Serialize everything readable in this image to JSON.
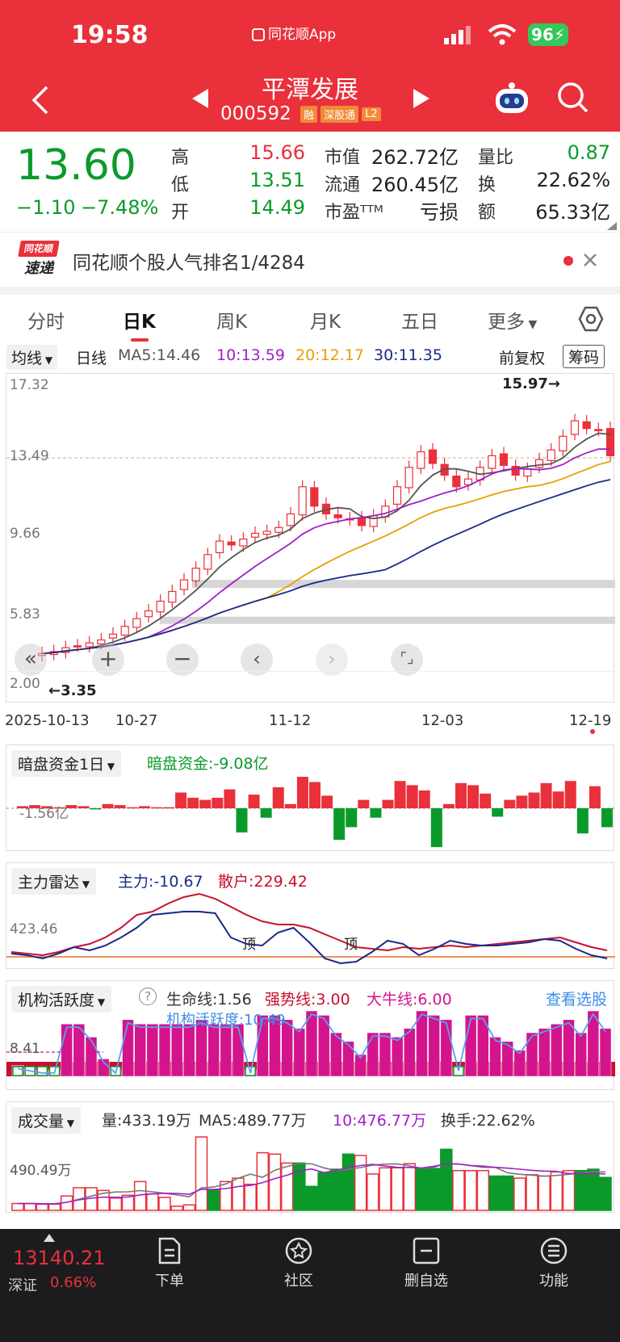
{
  "status": {
    "time": "19:58",
    "app_label": "同花顺App",
    "battery": "96"
  },
  "nav": {
    "stock_name": "平潭发展",
    "stock_code": "000592",
    "tags": [
      "融",
      "深股通",
      "L2"
    ]
  },
  "quote": {
    "price": "13.60",
    "change": "−1.10",
    "change_pct": "−7.48%",
    "high_label": "高",
    "high": "15.66",
    "low_label": "低",
    "low": "13.51",
    "open_label": "开",
    "open": "14.49",
    "mcap_label": "市值",
    "mcap": "262.72亿",
    "float_label": "流通",
    "float": "260.45亿",
    "pe_label": "市盈ᵀᵀᴹ",
    "pe": "亏损",
    "vr_label": "量比",
    "vr": "0.87",
    "turnover_label": "换",
    "turnover": "22.62%",
    "amount_label": "额",
    "amount": "65.33亿"
  },
  "banner": {
    "logo_top": "同花顺",
    "logo_bottom": "速递",
    "text": "同花顺个股人气排名1/4284"
  },
  "tabs": [
    "分时",
    "日K",
    "周K",
    "月K",
    "五日",
    "更多"
  ],
  "ma": {
    "selector": "均线",
    "period": "日线",
    "ma5": "MA5:14.46",
    "ma10": "10:13.59",
    "ma20": "20:12.17",
    "ma30": "30:11.35",
    "adjust": "前复权",
    "chips": "筹码"
  },
  "kline": {
    "y_labels": [
      "17.32",
      "13.49",
      "9.66",
      "5.83",
      "2.00"
    ],
    "x_labels": [
      "2025-10-13",
      "10-27",
      "11-12",
      "12-03",
      "12-19"
    ],
    "max_label": "15.97→",
    "min_label": "←3.35",
    "closes": [
      3.4,
      3.5,
      3.7,
      3.8,
      3.95,
      4.1,
      4.4,
      4.8,
      5.2,
      5.6,
      6.1,
      6.6,
      7.2,
      7.8,
      8.5,
      9.2,
      9.0,
      9.3,
      9.6,
      9.7,
      9.9,
      10.6,
      12.0,
      11.0,
      10.6,
      10.4,
      10.3,
      10.0,
      10.5,
      11.0,
      12.0,
      13.0,
      13.8,
      13.2,
      12.6,
      12.0,
      12.4,
      13.0,
      13.6,
      13.1,
      12.6,
      12.9,
      13.4,
      13.9,
      14.6,
      15.4,
      15.0,
      14.9,
      13.6
    ]
  },
  "panel_dark": {
    "title": "暗盘资金1日",
    "value": "暗盘资金:-9.08亿",
    "ref": "-1.56亿",
    "values": [
      0.2,
      0.3,
      0.2,
      0.1,
      0.3,
      0.2,
      -0.1,
      0.4,
      0.3,
      0.1,
      0.2,
      0.1,
      0.1,
      1.5,
      1.0,
      0.8,
      1.0,
      1.8,
      -2.3,
      1.3,
      -0.9,
      2.0,
      0.4,
      3.0,
      2.5,
      1.2,
      -3.0,
      -1.8,
      0.8,
      -0.9,
      0.8,
      2.6,
      2.2,
      1.7,
      -3.7,
      0.4,
      2.4,
      2.2,
      1.4,
      -0.8,
      0.8,
      1.2,
      1.5,
      2.4,
      1.6,
      2.6,
      -2.4,
      2.1,
      -1.8
    ]
  },
  "panel_radar": {
    "title": "主力雷达",
    "main": "主力:-10.67",
    "retail": "散户:229.42",
    "ref": "423.46",
    "top_labels": [
      "顶",
      "顶"
    ]
  },
  "panel_inst": {
    "title": "机构活跃度",
    "life": "生命线:1.56",
    "strong": "强势线:3.00",
    "bull": "大牛线:6.00",
    "link": "查看选股",
    "activity": "机构活跃度:10.49",
    "ref": "8.41",
    "values": [
      2.5,
      2,
      1.5,
      1.5,
      12,
      12,
      9,
      4,
      1.5,
      13,
      12,
      12,
      12,
      12,
      12,
      13,
      12,
      12,
      12,
      1.5,
      14,
      14,
      13,
      11,
      15,
      14,
      10,
      8,
      5,
      10,
      10,
      9,
      11,
      15,
      14,
      13,
      2,
      14,
      14,
      9,
      8,
      6,
      10,
      11,
      12,
      13,
      10,
      15,
      11
    ]
  },
  "panel_vol": {
    "title": "成交量",
    "vol": "量:433.19万",
    "ma5": "MA5:489.77万",
    "ma10": "10:476.77万",
    "turnover": "换手:22.62%",
    "ref": "490.49万",
    "values": [
      100,
      100,
      90,
      90,
      210,
      330,
      330,
      290,
      180,
      220,
      420,
      240,
      190,
      60,
      80,
      1070,
      300,
      420,
      470,
      380,
      840,
      820,
      690,
      690,
      350,
      550,
      600,
      820,
      800,
      530,
      620,
      620,
      680,
      610,
      610,
      890,
      580,
      580,
      580,
      500,
      500,
      470,
      520,
      500,
      560,
      580,
      580,
      600,
      480
    ]
  },
  "overlay": {
    "icons": [
      "double-left",
      "zoom-in",
      "zoom-out",
      "prev",
      "next",
      "fullscreen"
    ]
  },
  "bottom": {
    "index_value": "13140.21",
    "index_name": "深证",
    "index_pct": "0.66%",
    "items": [
      "下单",
      "社区",
      "删自选",
      "功能"
    ]
  }
}
